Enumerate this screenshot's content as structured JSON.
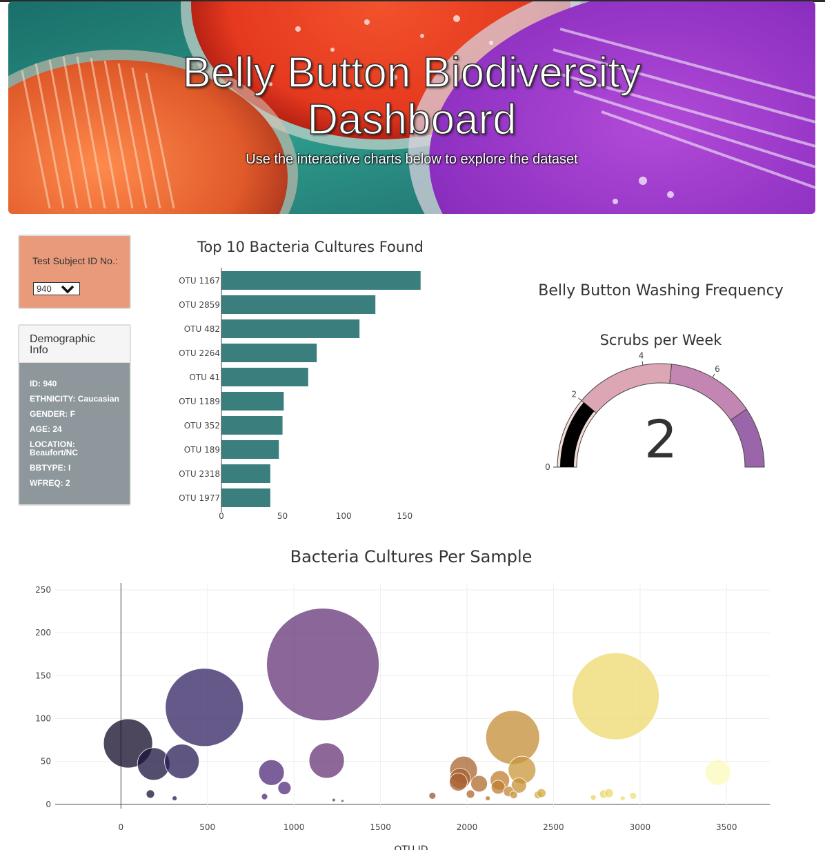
{
  "header": {
    "title_line1": "Belly Button Biodiversity",
    "title_line2": "Dashboard",
    "subtitle": "Use the interactive charts below to explore the dataset"
  },
  "selector": {
    "label": "Test Subject ID No.:",
    "selected": "940"
  },
  "demographics": {
    "title": "Demographic Info",
    "items": [
      "ID: 940",
      "ETHNICITY: Caucasian",
      "GENDER: F",
      "AGE: 24",
      "LOCATION: Beaufort/NC",
      "BBTYPE: I",
      "WFREQ: 2"
    ]
  },
  "colors": {
    "bar": "#3a7f7e",
    "selector_bg": "#e99a7a",
    "demo_bg": "#8e979c"
  },
  "chart_data": [
    {
      "type": "bar",
      "orientation": "horizontal",
      "title": "Top 10 Bacteria Cultures Found",
      "categories": [
        "OTU 1167",
        "OTU 2859",
        "OTU 482",
        "OTU 2264",
        "OTU 41",
        "OTU 1189",
        "OTU 352",
        "OTU 189",
        "OTU 2318",
        "OTU 1977"
      ],
      "values": [
        163,
        126,
        113,
        78,
        71,
        51,
        50,
        47,
        40,
        40
      ],
      "xlim": [
        0,
        175
      ],
      "xticks": [
        0,
        50,
        100,
        150
      ]
    },
    {
      "type": "gauge",
      "title": "Belly Button Washing Frequency",
      "subtitle": "Scrubs per Week",
      "value": 2,
      "range": [
        0,
        9
      ],
      "tick_labels": [
        "0",
        "2",
        "4",
        "6"
      ],
      "band_colors": [
        "#f4ddd7",
        "#dca6b4",
        "#c386b2",
        "#9b65a9"
      ]
    },
    {
      "type": "scatter",
      "title": "Bacteria Cultures Per Sample",
      "xlabel": "OTU ID",
      "xticks": [
        0,
        500,
        1000,
        1500,
        2000,
        2500,
        3000,
        3500
      ],
      "yticks": [
        0,
        50,
        100,
        150,
        200,
        250
      ],
      "xlim": [
        -380,
        3750
      ],
      "ylim": [
        -5,
        258
      ],
      "points": [
        {
          "x": 41,
          "y": 71
        },
        {
          "x": 189,
          "y": 47
        },
        {
          "x": 352,
          "y": 50
        },
        {
          "x": 482,
          "y": 113
        },
        {
          "x": 1167,
          "y": 163
        },
        {
          "x": 1189,
          "y": 51
        },
        {
          "x": 870,
          "y": 37
        },
        {
          "x": 945,
          "y": 19
        },
        {
          "x": 170,
          "y": 12
        },
        {
          "x": 310,
          "y": 7
        },
        {
          "x": 830,
          "y": 9
        },
        {
          "x": 1800,
          "y": 10
        },
        {
          "x": 1980,
          "y": 40
        },
        {
          "x": 1960,
          "y": 30
        },
        {
          "x": 1950,
          "y": 26
        },
        {
          "x": 2070,
          "y": 24
        },
        {
          "x": 2264,
          "y": 78
        },
        {
          "x": 2318,
          "y": 40
        },
        {
          "x": 2190,
          "y": 28
        },
        {
          "x": 2180,
          "y": 20
        },
        {
          "x": 2300,
          "y": 22
        },
        {
          "x": 2240,
          "y": 15
        },
        {
          "x": 2270,
          "y": 11
        },
        {
          "x": 2020,
          "y": 12
        },
        {
          "x": 2120,
          "y": 7
        },
        {
          "x": 2410,
          "y": 11
        },
        {
          "x": 2430,
          "y": 13
        },
        {
          "x": 2859,
          "y": 126
        },
        {
          "x": 3450,
          "y": 37
        },
        {
          "x": 2790,
          "y": 12
        },
        {
          "x": 2820,
          "y": 13
        },
        {
          "x": 2730,
          "y": 8
        },
        {
          "x": 2960,
          "y": 10
        },
        {
          "x": 2900,
          "y": 7
        },
        {
          "x": 1230,
          "y": 5
        },
        {
          "x": 1280,
          "y": 4
        }
      ]
    }
  ]
}
